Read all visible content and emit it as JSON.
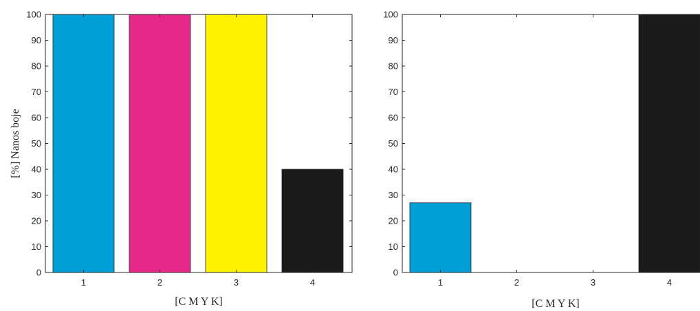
{
  "chart_data": [
    {
      "type": "bar",
      "categories": [
        "1",
        "2",
        "3",
        "4"
      ],
      "values": [
        100,
        100,
        100,
        40
      ],
      "colors": [
        "#009fd7",
        "#e7288a",
        "#fef200",
        "#1a1a1a"
      ],
      "title": "",
      "xlabel": "[C M Y K]",
      "ylabel": "[%] Nanos boje",
      "ylim": [
        0,
        100
      ],
      "yticks": [
        "0",
        "10",
        "20",
        "30",
        "40",
        "50",
        "60",
        "70",
        "80",
        "90",
        "100"
      ],
      "grid": false
    },
    {
      "type": "bar",
      "categories": [
        "1",
        "2",
        "3",
        "4"
      ],
      "values": [
        27,
        0,
        0,
        100
      ],
      "colors": [
        "#009fd7",
        "#e7288a",
        "#fef200",
        "#1a1a1a"
      ],
      "title": "",
      "xlabel": "[C M Y K]",
      "ylabel": "",
      "ylim": [
        0,
        100
      ],
      "yticks": [
        "0",
        "10",
        "20",
        "30",
        "40",
        "50",
        "60",
        "70",
        "80",
        "90",
        "100"
      ],
      "grid": false
    }
  ]
}
